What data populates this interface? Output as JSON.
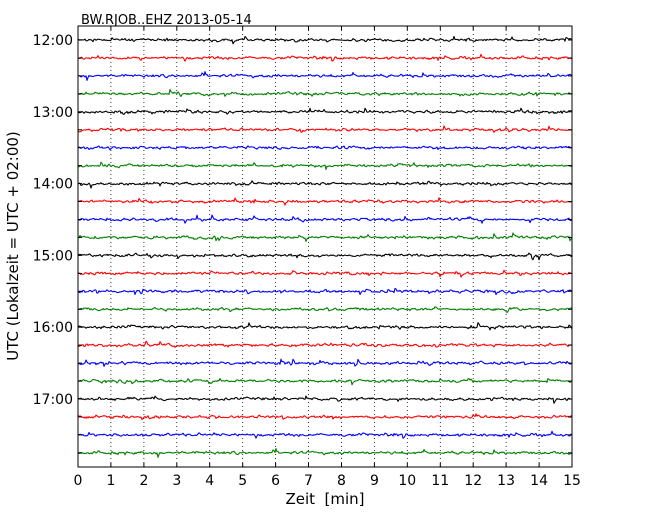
{
  "chart_data": {
    "type": "line",
    "title": "BW.RJOB..EHZ 2013-05-14",
    "xlabel": "Zeit  [min]",
    "ylabel": "UTC (Lokalzeit = UTC + 02:00)",
    "xlim": [
      0,
      15
    ],
    "x_ticks": [
      "0",
      "1",
      "2",
      "3",
      "4",
      "5",
      "6",
      "7",
      "8",
      "9",
      "10",
      "11",
      "12",
      "13",
      "14",
      "15"
    ],
    "y_tick_labels": [
      "12:00",
      "13:00",
      "14:00",
      "15:00",
      "16:00",
      "17:00"
    ],
    "grid": "vertical dotted lines at each minute",
    "trace_colors": [
      "#000000",
      "#ff0000",
      "#0000ff",
      "#008000"
    ],
    "traces": [
      {
        "start": "12:00",
        "color": "#000000"
      },
      {
        "start": "12:15",
        "color": "#ff0000"
      },
      {
        "start": "12:30",
        "color": "#0000ff"
      },
      {
        "start": "12:45",
        "color": "#008000"
      },
      {
        "start": "13:00",
        "color": "#000000"
      },
      {
        "start": "13:15",
        "color": "#ff0000"
      },
      {
        "start": "13:30",
        "color": "#0000ff"
      },
      {
        "start": "13:45",
        "color": "#008000"
      },
      {
        "start": "14:00",
        "color": "#000000"
      },
      {
        "start": "14:15",
        "color": "#ff0000"
      },
      {
        "start": "14:30",
        "color": "#0000ff"
      },
      {
        "start": "14:45",
        "color": "#008000"
      },
      {
        "start": "15:00",
        "color": "#000000"
      },
      {
        "start": "15:15",
        "color": "#ff0000"
      },
      {
        "start": "15:30",
        "color": "#0000ff"
      },
      {
        "start": "15:45",
        "color": "#008000"
      },
      {
        "start": "16:00",
        "color": "#000000"
      },
      {
        "start": "16:15",
        "color": "#ff0000"
      },
      {
        "start": "16:30",
        "color": "#0000ff"
      },
      {
        "start": "16:45",
        "color": "#008000"
      },
      {
        "start": "17:00",
        "color": "#000000"
      },
      {
        "start": "17:15",
        "color": "#ff0000"
      },
      {
        "start": "17:30",
        "color": "#0000ff"
      },
      {
        "start": "17:45",
        "color": "#008000"
      }
    ]
  }
}
